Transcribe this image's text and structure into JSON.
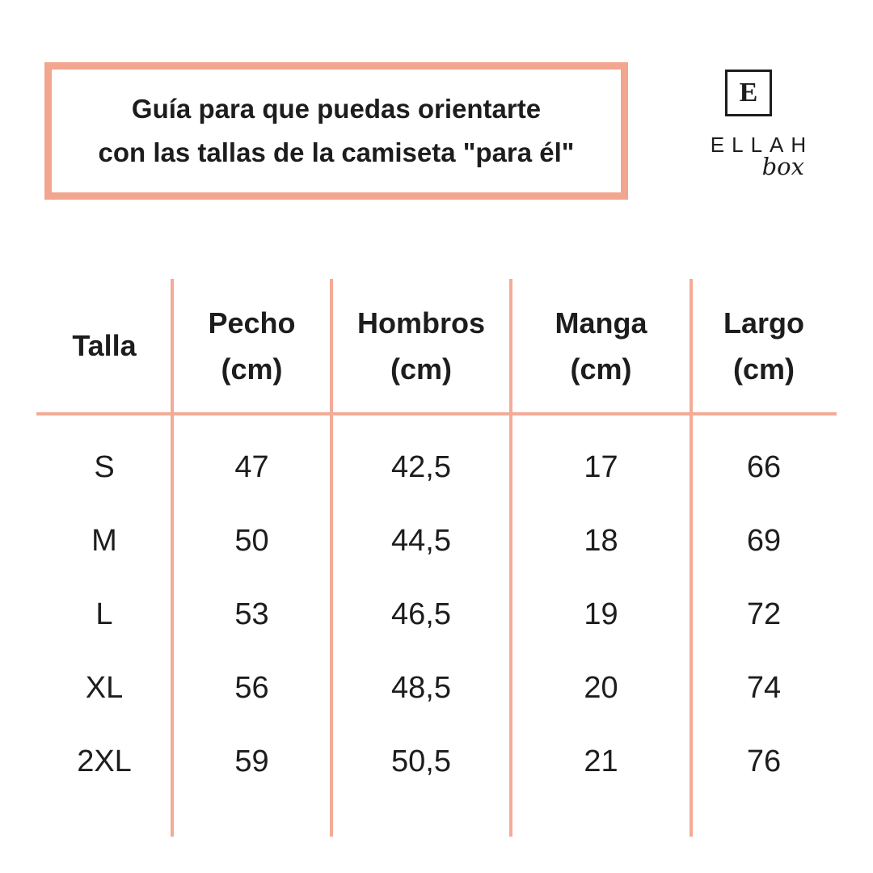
{
  "colors": {
    "accent_border": "#f2a58f",
    "table_line": "#f3ab97",
    "text": "#1d1d1d",
    "background": "#ffffff"
  },
  "header": {
    "title_line1": "Guía para que puedas orientarte",
    "title_line2": "con las tallas de la camiseta \"para él\""
  },
  "logo": {
    "monogram": "E",
    "name": "ELLAH",
    "sub": "box"
  },
  "table": {
    "headers": [
      {
        "label": "Talla",
        "unit": ""
      },
      {
        "label": "Pecho",
        "unit": "(cm)"
      },
      {
        "label": "Hombros",
        "unit": "(cm)"
      },
      {
        "label": "Manga",
        "unit": "(cm)"
      },
      {
        "label": "Largo",
        "unit": "(cm)"
      }
    ],
    "rows": [
      [
        "S",
        "47",
        "42,5",
        "17",
        "66"
      ],
      [
        "M",
        "50",
        "44,5",
        "18",
        "69"
      ],
      [
        "L",
        "53",
        "46,5",
        "19",
        "72"
      ],
      [
        "XL",
        "56",
        "48,5",
        "20",
        "74"
      ],
      [
        "2XL",
        "59",
        "50,5",
        "21",
        "76"
      ]
    ]
  },
  "chart_data": {
    "type": "table",
    "title": "Guía para que puedas orientarte con las tallas de la camiseta \"para él\"",
    "columns": [
      "Talla",
      "Pecho (cm)",
      "Hombros (cm)",
      "Manga (cm)",
      "Largo (cm)"
    ],
    "rows": [
      [
        "S",
        47,
        42.5,
        17,
        66
      ],
      [
        "M",
        50,
        44.5,
        18,
        69
      ],
      [
        "L",
        53,
        46.5,
        19,
        72
      ],
      [
        "XL",
        56,
        48.5,
        20,
        74
      ],
      [
        "2XL",
        59,
        50.5,
        21,
        76
      ]
    ],
    "units": "cm",
    "notes": "T-shirt size guide for men (camiseta para él)"
  }
}
